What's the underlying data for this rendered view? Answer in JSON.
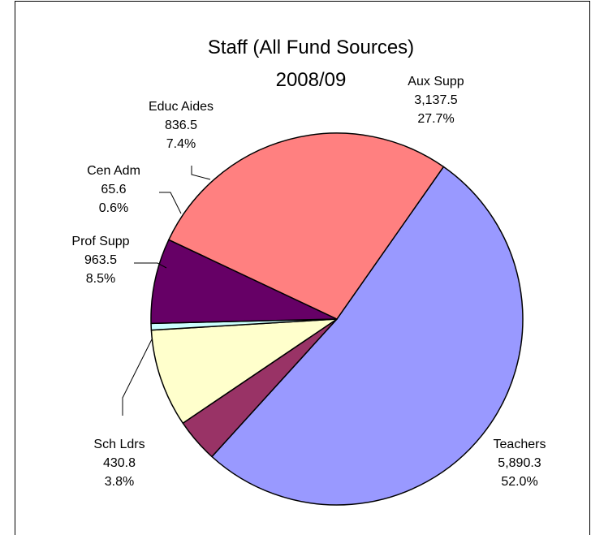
{
  "chart_data": {
    "type": "pie",
    "title": "Staff (All Fund Sources)",
    "subtitle": "2008/09",
    "legend": "none",
    "slices": [
      {
        "name": "Teachers",
        "value": 5890.3,
        "value_label": "5,890.3",
        "percent_label": "52.0%",
        "color": "#9999FF"
      },
      {
        "name": "Sch Ldrs",
        "value": 430.8,
        "value_label": "430.8",
        "percent_label": "3.8%",
        "color": "#993366"
      },
      {
        "name": "Prof Supp",
        "value": 963.5,
        "value_label": "963.5",
        "percent_label": "8.5%",
        "color": "#FFFFCC"
      },
      {
        "name": "Cen Adm",
        "value": 65.6,
        "value_label": "65.6",
        "percent_label": "0.6%",
        "color": "#CCFFFF"
      },
      {
        "name": "Educ Aides",
        "value": 836.5,
        "value_label": "836.5",
        "percent_label": "7.4%",
        "color": "#660066"
      },
      {
        "name": "Aux Supp",
        "value": 3137.5,
        "value_label": "3,137.5",
        "percent_label": "27.7%",
        "color": "#FF8080"
      }
    ]
  }
}
